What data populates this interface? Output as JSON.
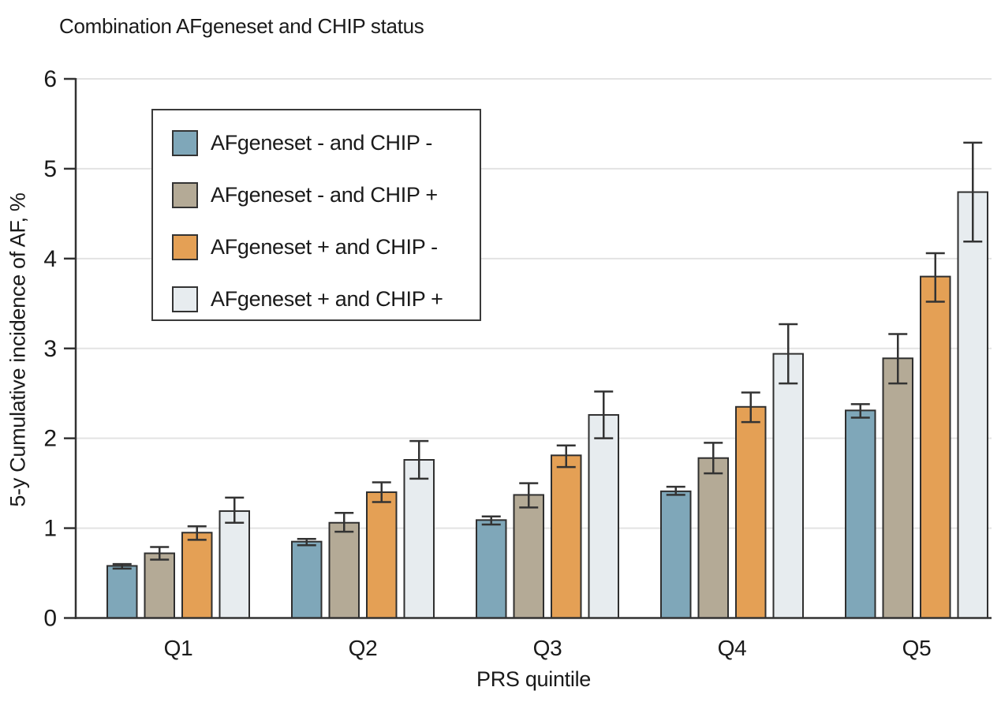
{
  "title": "Combination AFgeneset and CHIP status",
  "axes": {
    "y_label": "5-y Cumulative incidence of AF, %",
    "x_label": "PRS quintile"
  },
  "colors": {
    "axis": "#333333",
    "gridline": "#e3e3e3",
    "bar_stroke": "#2f2f2f",
    "error_bar": "#333333",
    "text": "#1a1a1a"
  },
  "chart_data": {
    "type": "bar",
    "title": "Combination AFgeneset and CHIP status",
    "xlabel": "PRS quintile",
    "ylabel": "5-y Cumulative incidence of AF, %",
    "categories": [
      "Q1",
      "Q2",
      "Q3",
      "Q4",
      "Q5"
    ],
    "y_ticks": [
      0,
      1,
      2,
      3,
      4,
      5,
      6
    ],
    "ylim": [
      0,
      6
    ],
    "grid": true,
    "legend_position": "upper-left",
    "series": [
      {
        "name": "AFgeneset - and CHIP -",
        "color": "#7fa7b9",
        "values": [
          0.58,
          0.85,
          1.09,
          1.41,
          2.31
        ],
        "err_low": [
          0.55,
          0.81,
          1.04,
          1.37,
          2.23
        ],
        "err_high": [
          0.6,
          0.88,
          1.13,
          1.46,
          2.38
        ]
      },
      {
        "name": "AFgeneset - and CHIP +",
        "color": "#b4aa96",
        "values": [
          0.72,
          1.06,
          1.37,
          1.78,
          2.89
        ],
        "err_low": [
          0.65,
          0.96,
          1.23,
          1.61,
          2.61
        ],
        "err_high": [
          0.79,
          1.17,
          1.5,
          1.95,
          3.16
        ]
      },
      {
        "name": "AFgeneset + and CHIP -",
        "color": "#e4a055",
        "values": [
          0.95,
          1.4,
          1.81,
          2.35,
          3.8
        ],
        "err_low": [
          0.87,
          1.29,
          1.68,
          2.18,
          3.52
        ],
        "err_high": [
          1.02,
          1.51,
          1.92,
          2.51,
          4.06
        ]
      },
      {
        "name": "AFgeneset + and CHIP +",
        "color": "#e7ecef",
        "values": [
          1.19,
          1.76,
          2.26,
          2.94,
          4.74
        ],
        "err_low": [
          1.06,
          1.55,
          2.0,
          2.61,
          4.19
        ],
        "err_high": [
          1.34,
          1.97,
          2.52,
          3.27,
          5.29
        ]
      }
    ]
  }
}
